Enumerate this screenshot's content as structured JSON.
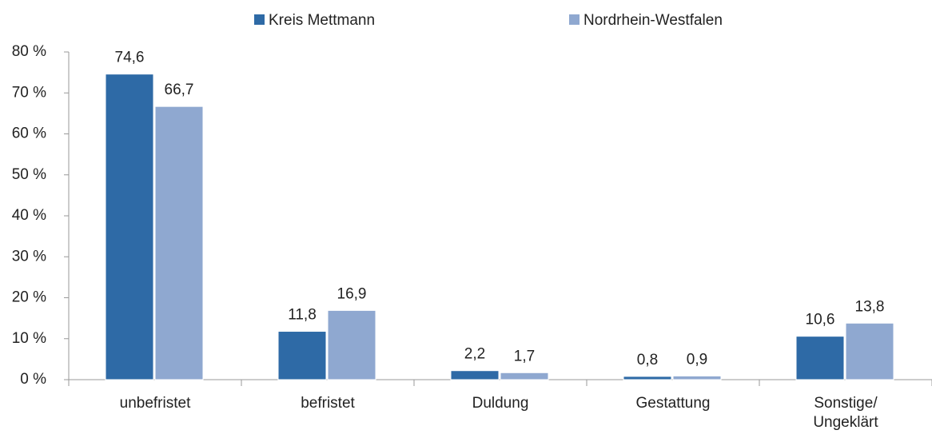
{
  "chart_data": {
    "type": "bar",
    "categories": [
      "unbefristet",
      "befristet",
      "Duldung",
      "Gestattung",
      "Sonstige/\nUngeklärt"
    ],
    "series": [
      {
        "name": "Kreis Mettmann",
        "color": "#2e6aa6",
        "values": [
          74.6,
          11.8,
          2.2,
          0.8,
          10.6
        ],
        "value_labels": [
          "74,6",
          "11,8",
          "2,2",
          "0,8",
          "10,6"
        ]
      },
      {
        "name": "Nordrhein-Westfalen",
        "color": "#8fa8d0",
        "values": [
          66.7,
          16.9,
          1.7,
          0.9,
          13.8
        ],
        "value_labels": [
          "66,7",
          "16,9",
          "1,7",
          "0,9",
          "13,8"
        ]
      }
    ],
    "ylim": [
      0,
      80
    ],
    "yticks": [
      {
        "value": 0,
        "label": "0 %"
      },
      {
        "value": 10,
        "label": "10 %"
      },
      {
        "value": 20,
        "label": "20 %"
      },
      {
        "value": 30,
        "label": "30 %"
      },
      {
        "value": 40,
        "label": "40 %"
      },
      {
        "value": 50,
        "label": "50 %"
      },
      {
        "value": 60,
        "label": "60 %"
      },
      {
        "value": 70,
        "label": "70 %"
      },
      {
        "value": 80,
        "label": "80 %"
      }
    ],
    "legend": "top",
    "grid": false
  }
}
